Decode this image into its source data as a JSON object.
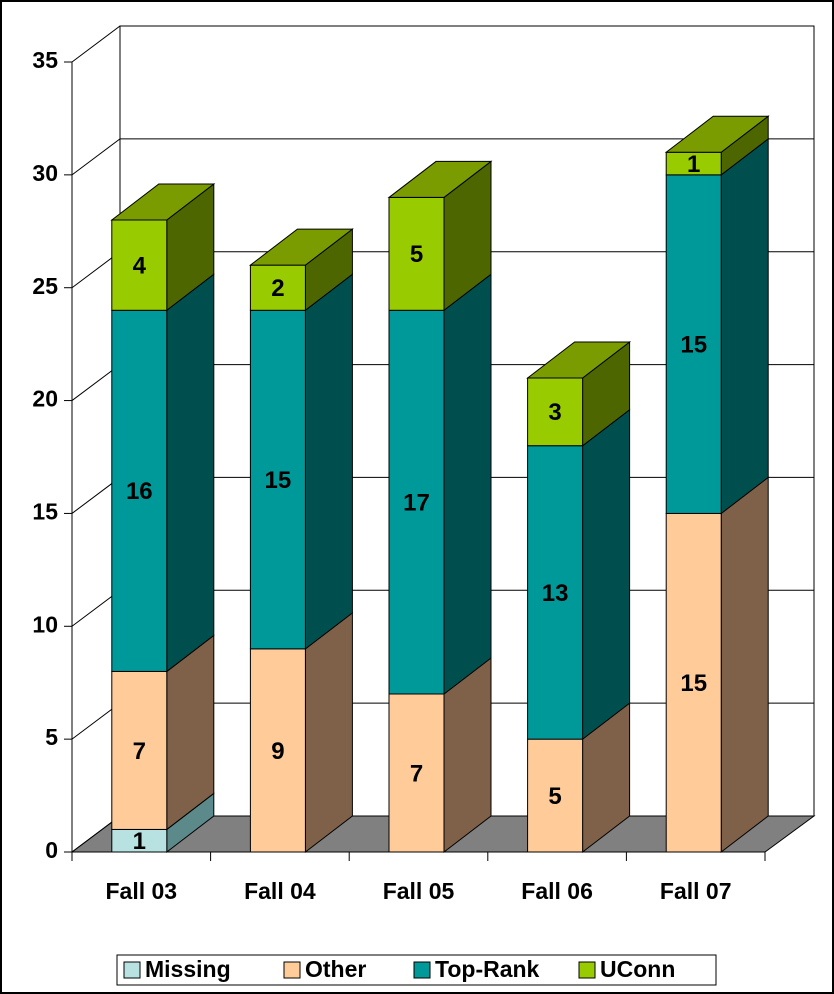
{
  "chart_data": {
    "type": "bar3d_stacked",
    "categories": [
      "Fall 03",
      "Fall 04",
      "Fall 05",
      "Fall 06",
      "Fall 07"
    ],
    "series": [
      {
        "name": "Missing",
        "color": "#b8e2e2",
        "side": "#5c8a8a",
        "values": [
          1,
          null,
          null,
          null,
          null
        ]
      },
      {
        "name": "Other",
        "color": "#ffcc99",
        "side": "#7f6149",
        "values": [
          7,
          9,
          7,
          5,
          15
        ]
      },
      {
        "name": "Top-Rank",
        "color": "#009999",
        "side": "#004f4f",
        "values": [
          16,
          15,
          17,
          13,
          15
        ]
      },
      {
        "name": "UConn",
        "color": "#99cc00",
        "side": "#4d6600",
        "top": "#7a9c00",
        "values": [
          4,
          2,
          5,
          3,
          1
        ]
      }
    ],
    "ylim": [
      0,
      35
    ],
    "yticks": [
      0,
      5,
      10,
      15,
      20,
      25,
      30,
      35
    ],
    "grid": true,
    "legend": "bottom"
  }
}
